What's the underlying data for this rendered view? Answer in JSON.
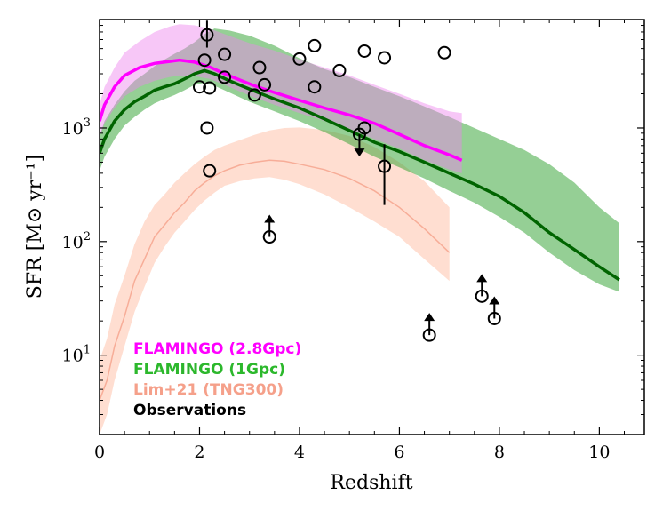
{
  "chart_data": {
    "type": "line",
    "title": "",
    "xlabel": "Redshift",
    "ylabel": "SFR [M⊙ yr⁻¹]",
    "xlim": [
      0,
      10.9
    ],
    "ylim": [
      2,
      9000
    ],
    "yscale": "log",
    "x_ticks": [
      0,
      2,
      4,
      6,
      8,
      10
    ],
    "y_ticks": [
      {
        "value": 10,
        "base": "10",
        "exp": "1"
      },
      {
        "value": 100,
        "base": "10",
        "exp": "2"
      },
      {
        "value": 1000,
        "base": "10",
        "exp": "3"
      }
    ],
    "legend_location": "lower-left",
    "series": [
      {
        "name": "FLAMINGO (2.8Gpc)",
        "color": "#ff00ff",
        "band_color": "#ee82ee",
        "x": [
          0,
          0.1,
          0.3,
          0.5,
          0.8,
          1.1,
          1.4,
          1.6,
          1.9,
          2.2,
          2.5,
          2.8,
          3.1,
          3.5,
          4.0,
          4.5,
          5.0,
          5.5,
          6.0,
          6.5,
          7.0,
          7.25
        ],
        "median": [
          1150,
          1600,
          2300,
          2900,
          3400,
          3700,
          3850,
          3950,
          3800,
          3450,
          3000,
          2650,
          2350,
          2050,
          1750,
          1500,
          1300,
          1100,
          880,
          700,
          580,
          520
        ],
        "lower": [
          830,
          1100,
          1500,
          1900,
          2300,
          2600,
          2800,
          2900,
          2850,
          2700,
          2400,
          2100,
          1850,
          1600,
          1350,
          1150,
          980,
          800,
          660,
          520,
          430,
          400
        ],
        "upper": [
          1600,
          2300,
          3400,
          4600,
          5800,
          7000,
          7800,
          8200,
          8000,
          7500,
          6700,
          6000,
          5400,
          4800,
          4000,
          3400,
          2900,
          2400,
          2000,
          1650,
          1400,
          1350
        ]
      },
      {
        "name": "FLAMINGO (1Gpc)",
        "color": "#006400",
        "band_color": "#2ca02c",
        "x": [
          0,
          0.1,
          0.3,
          0.5,
          0.7,
          0.9,
          1.1,
          1.3,
          1.5,
          1.7,
          1.9,
          2.1,
          2.3,
          2.6,
          3.0,
          3.5,
          4.0,
          4.5,
          5.0,
          5.5,
          6.0,
          6.5,
          7.0,
          7.5,
          8.0,
          8.5,
          9.0,
          9.5,
          10.0,
          10.4
        ],
        "median": [
          600,
          800,
          1150,
          1450,
          1700,
          1900,
          2150,
          2300,
          2450,
          2700,
          3000,
          3200,
          3000,
          2600,
          2200,
          1800,
          1500,
          1200,
          950,
          750,
          620,
          500,
          400,
          320,
          250,
          180,
          120,
          85,
          60,
          46
        ],
        "lower": [
          420,
          560,
          800,
          1050,
          1250,
          1450,
          1650,
          1800,
          1950,
          2150,
          2400,
          2500,
          2350,
          2050,
          1700,
          1400,
          1150,
          920,
          720,
          560,
          450,
          360,
          280,
          220,
          165,
          120,
          80,
          56,
          42,
          36
        ],
        "upper": [
          850,
          1150,
          1600,
          2100,
          2600,
          3000,
          3500,
          4000,
          4500,
          5000,
          5700,
          6700,
          7500,
          7200,
          6500,
          5300,
          4100,
          3300,
          2800,
          2300,
          1900,
          1550,
          1250,
          1000,
          800,
          640,
          480,
          330,
          200,
          145
        ]
      },
      {
        "name": "Lim+21 (TNG300)",
        "color": "#f5a08a",
        "band_color": "#ffb599",
        "x": [
          0,
          0.15,
          0.3,
          0.5,
          0.7,
          0.9,
          1.1,
          1.3,
          1.5,
          1.7,
          1.9,
          2.1,
          2.3,
          2.5,
          2.8,
          3.1,
          3.4,
          3.7,
          4.0,
          4.5,
          5.0,
          5.5,
          6.0,
          6.5,
          7.0
        ],
        "median": [
          4,
          6,
          12,
          22,
          45,
          70,
          110,
          140,
          180,
          220,
          280,
          330,
          380,
          420,
          470,
          500,
          520,
          510,
          480,
          430,
          360,
          280,
          200,
          130,
          80
        ],
        "lower": [
          2,
          3,
          6,
          12,
          24,
          40,
          65,
          90,
          120,
          150,
          190,
          230,
          270,
          310,
          340,
          360,
          370,
          350,
          320,
          260,
          200,
          150,
          110,
          70,
          45
        ],
        "upper": [
          9,
          14,
          28,
          50,
          95,
          150,
          210,
          260,
          330,
          400,
          480,
          560,
          640,
          700,
          780,
          870,
          950,
          1000,
          1010,
          960,
          850,
          680,
          500,
          340,
          200
        ]
      }
    ],
    "observations": {
      "name": "Observations",
      "color": "#000000",
      "points": [
        {
          "x": 2.15,
          "y": 6600,
          "err_low": 5100,
          "err_high": 8800
        },
        {
          "x": 2.1,
          "y": 3950
        },
        {
          "x": 2.5,
          "y": 4450
        },
        {
          "x": 2.5,
          "y": 2800
        },
        {
          "x": 2.0,
          "y": 2300
        },
        {
          "x": 2.2,
          "y": 2250
        },
        {
          "x": 3.2,
          "y": 3400
        },
        {
          "x": 3.3,
          "y": 2400
        },
        {
          "x": 3.1,
          "y": 1950
        },
        {
          "x": 4.0,
          "y": 4050
        },
        {
          "x": 4.3,
          "y": 5300
        },
        {
          "x": 4.3,
          "y": 2300
        },
        {
          "x": 4.8,
          "y": 3200
        },
        {
          "x": 5.3,
          "y": 4750
        },
        {
          "x": 5.7,
          "y": 4150
        },
        {
          "x": 6.9,
          "y": 4600
        },
        {
          "x": 2.15,
          "y": 1000
        },
        {
          "x": 2.2,
          "y": 420
        },
        {
          "x": 5.3,
          "y": 1000
        },
        {
          "x": 5.2,
          "y": 880,
          "upper_limit": true
        },
        {
          "x": 5.7,
          "y": 460,
          "err_low": 210,
          "err_high": 720
        },
        {
          "x": 3.4,
          "y": 110,
          "lower_limit": true
        },
        {
          "x": 6.6,
          "y": 15,
          "lower_limit": true
        },
        {
          "x": 7.65,
          "y": 33,
          "lower_limit": true
        },
        {
          "x": 7.9,
          "y": 21,
          "lower_limit": true
        }
      ]
    }
  },
  "legend": {
    "flamingo_28": {
      "label": "FLAMINGO (2.8Gpc)",
      "color": "#ff00ff"
    },
    "flamingo_1": {
      "label": "FLAMINGO (1Gpc)",
      "color": "#2cb82c"
    },
    "lim21": {
      "label": "Lim+21 (TNG300)",
      "color": "#f5a08a"
    },
    "obs": {
      "label": "Observations",
      "color": "#000000"
    }
  }
}
